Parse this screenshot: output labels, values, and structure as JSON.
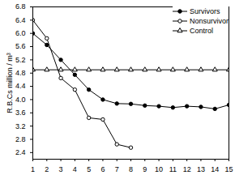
{
  "chart_data": {
    "type": "line",
    "ylabel": "R.B.Cs million / m³",
    "x": [
      1,
      2,
      3,
      4,
      5,
      6,
      7,
      8,
      9,
      10,
      11,
      12,
      13,
      14,
      15
    ],
    "series": [
      {
        "name": "Survivors",
        "color": "#000000",
        "marker": "circle_filled",
        "line_style": "solid",
        "values": [
          6.0,
          5.65,
          5.2,
          4.75,
          4.3,
          4.0,
          3.88,
          3.87,
          3.82,
          3.8,
          3.76,
          3.8,
          3.78,
          3.72,
          3.84
        ]
      },
      {
        "name": "Nonsurvivor",
        "color": "#000000",
        "marker": "circle_open",
        "line_style": "solid",
        "values": [
          6.4,
          5.85,
          4.65,
          4.3,
          3.45,
          3.4,
          2.65,
          2.55,
          null,
          null,
          null,
          null,
          null,
          null,
          null
        ]
      },
      {
        "name": "Control",
        "color": "#000000",
        "marker": "triangle_open",
        "line_style": "solid",
        "values": [
          4.9,
          4.9,
          4.9,
          4.9,
          4.9,
          4.9,
          4.9,
          4.9,
          4.9,
          4.9,
          4.9,
          4.9,
          4.9,
          4.9,
          4.9
        ]
      }
    ],
    "xlim": [
      1,
      15
    ],
    "xticks": [
      1,
      2,
      3,
      4,
      5,
      6,
      7,
      8,
      9,
      10,
      11,
      12,
      13,
      14,
      15
    ],
    "ylim": [
      2.2,
      6.8
    ],
    "yticks": [
      {
        "value": 2.4,
        "label": "2.4"
      },
      {
        "value": 2.8,
        "label": "2.8"
      },
      {
        "value": 3.2,
        "label": "3.2"
      },
      {
        "value": 3.6,
        "label": "3.6"
      },
      {
        "value": 4.0,
        "label": "4.0"
      },
      {
        "value": 4.4,
        "label": "4.4"
      },
      {
        "value": 4.8,
        "label": "4.8"
      },
      {
        "value": 5.2,
        "label": "5.2"
      },
      {
        "value": 5.6,
        "label": "5.6"
      },
      {
        "value": 6.0,
        "label": "6.0"
      },
      {
        "value": 6.4,
        "label": "6.4"
      },
      {
        "value": 6.8,
        "label": "6.8"
      }
    ],
    "grid": false,
    "legend": "top-right"
  }
}
